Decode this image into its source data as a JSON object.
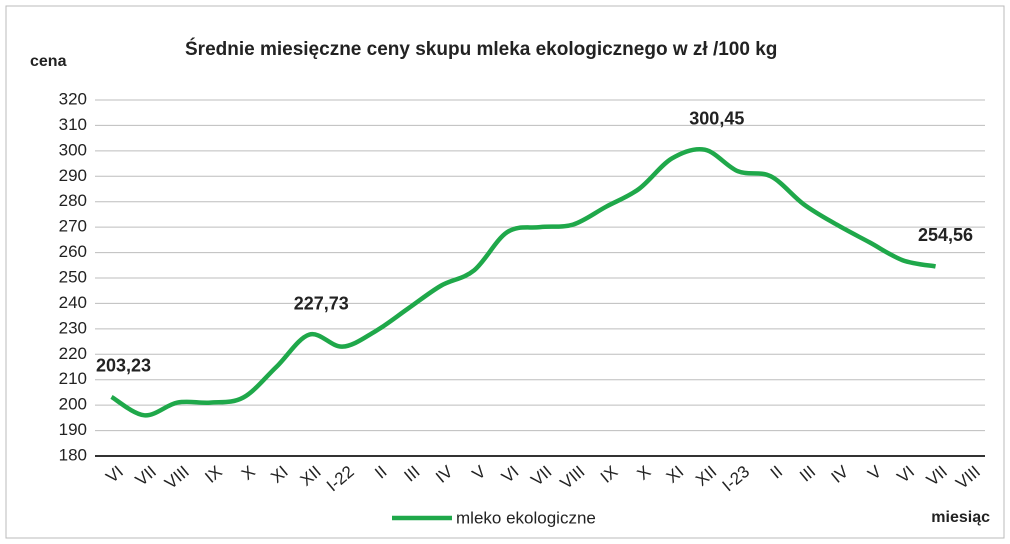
{
  "chart_data": {
    "type": "line",
    "title": "Średnie miesięczne ceny skupu mleka ekologicznego w zł /100 kg",
    "y_label": "cena",
    "x_label": "miesiąc",
    "categories": [
      "VI",
      "VII",
      "VIII",
      "IX",
      "X",
      "XI",
      "XII",
      "I-22",
      "II",
      "III",
      "IV",
      "V",
      "VI",
      "VII",
      "VIII",
      "IX",
      "X",
      "XI",
      "XII",
      "I-23",
      "II",
      "III",
      "IV",
      "V",
      "VI",
      "VII",
      "VIII"
    ],
    "series": [
      {
        "name": "mleko ekologiczne",
        "color": "#1fa84a",
        "values": [
          203.23,
          196,
          201,
          201,
          203,
          215,
          227.73,
          223,
          229,
          238,
          247,
          253,
          268,
          270,
          271,
          278,
          285,
          297,
          300.45,
          292,
          290,
          279,
          271,
          264,
          257,
          254.56,
          null
        ],
        "value_labels": [
          "203,23",
          null,
          null,
          null,
          null,
          null,
          "227,73",
          null,
          null,
          null,
          null,
          null,
          null,
          null,
          null,
          null,
          null,
          null,
          "300,45",
          null,
          null,
          null,
          null,
          null,
          null,
          "254,56",
          null
        ]
      }
    ],
    "ylim": [
      180,
      320
    ],
    "yticks": [
      180,
      190,
      200,
      210,
      220,
      230,
      240,
      250,
      260,
      270,
      280,
      290,
      300,
      310,
      320
    ],
    "grid": true,
    "legend": "bottom"
  }
}
